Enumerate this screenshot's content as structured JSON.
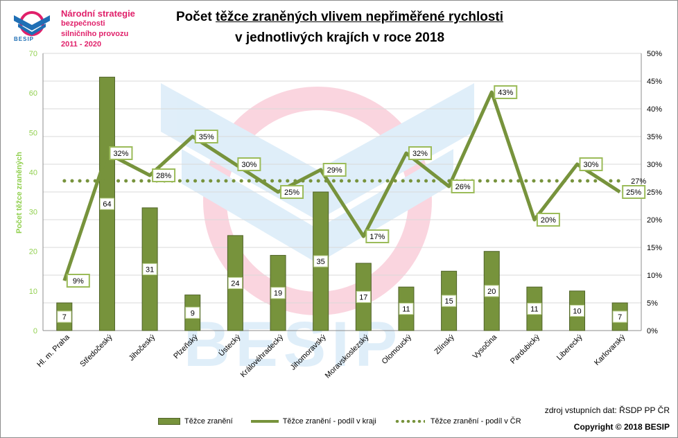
{
  "logo": {
    "line1": "Národní strategie",
    "line2": "bezpečnosti",
    "line3": "silničního provozu",
    "line4": "2011 - 2020",
    "word": "BESIP"
  },
  "title": {
    "prefix": "Počet ",
    "underlined": "těžce zraněných vlivem nepřiměřené rychlosti",
    "line2": "v jednotlivých krajích v roce 2018"
  },
  "source": "zdroj vstupních dat: ŘSDP PP ČR",
  "copyright": "Copyright © 2018  BESIP",
  "colors": {
    "bar": "#77933c",
    "bar_edge": "#4f6228",
    "line": "#77933c",
    "axis_left": "#92d050",
    "grid": "#d9d9d9"
  },
  "chart_data": {
    "type": "bar",
    "categories": [
      "Hl. m. Praha",
      "Středočeský",
      "Jihočeský",
      "Plzeňský",
      "Ústecký",
      "Královéhradecký",
      "Jihomoravský",
      "Moravskoslezský",
      "Olomoucký",
      "Zlínský",
      "Vysočina",
      "Pardubický",
      "Liberecký",
      "Karlovarský"
    ],
    "ylabel": "Počet těžce zraněných",
    "ylim": [
      0,
      70
    ],
    "yticks": [
      "0",
      "10",
      "20",
      "30",
      "40",
      "50",
      "60",
      "70"
    ],
    "y2lim": [
      0,
      50
    ],
    "y2ticks": [
      "0%",
      "5%",
      "10%",
      "15%",
      "20%",
      "25%",
      "30%",
      "35%",
      "40%",
      "45%",
      "50%"
    ],
    "grid": true,
    "legend_position": "bottom",
    "series": [
      {
        "name": "Těžce zranění",
        "type": "bar",
        "axis": "left",
        "values": [
          7,
          64,
          31,
          9,
          24,
          19,
          35,
          17,
          11,
          15,
          20,
          11,
          10,
          7
        ],
        "labels": [
          "7",
          "64",
          "31",
          "9",
          "24",
          "19",
          "35",
          "17",
          "11",
          "15",
          "20",
          "11",
          "10",
          "7"
        ]
      },
      {
        "name": "Těžce zranění - podíl v kraji",
        "type": "line",
        "axis": "right",
        "values": [
          9,
          32,
          28,
          35,
          30,
          25,
          29,
          17,
          32,
          26,
          43,
          20,
          30,
          25
        ],
        "labels": [
          "9%",
          "32%",
          "28%",
          "35%",
          "30%",
          "25%",
          "29%",
          "17%",
          "32%",
          "26%",
          "43%",
          "20%",
          "30%",
          "25%"
        ]
      },
      {
        "name": "Těžce zranění - podíl v ČR",
        "type": "dotted-line",
        "axis": "right",
        "values": [
          27,
          27,
          27,
          27,
          27,
          27,
          27,
          27,
          27,
          27,
          27,
          27,
          27,
          27
        ],
        "labels": [
          "27%"
        ]
      }
    ]
  }
}
